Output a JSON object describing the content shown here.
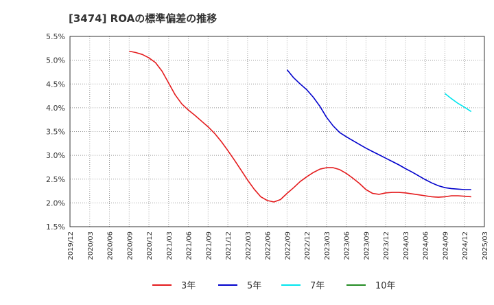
{
  "chart_data": {
    "type": "line",
    "title": "[3474]  ROAの標準偏差の推移",
    "xlabel": "",
    "ylabel": "",
    "ylim": [
      1.5,
      5.5
    ],
    "y_ticks": [
      1.5,
      2.0,
      2.5,
      3.0,
      3.5,
      4.0,
      4.5,
      5.0,
      5.5
    ],
    "y_tick_labels": [
      "1.5%",
      "2.0%",
      "2.5%",
      "3.0%",
      "3.5%",
      "4.0%",
      "4.5%",
      "5.0%",
      "5.5%"
    ],
    "x_tick_labels": [
      "2019/12",
      "2020/03",
      "2020/06",
      "2020/09",
      "2020/12",
      "2021/03",
      "2021/06",
      "2021/09",
      "2021/12",
      "2022/03",
      "2022/06",
      "2022/09",
      "2022/12",
      "2023/03",
      "2023/06",
      "2023/09",
      "2023/12",
      "2024/03",
      "2024/06",
      "2024/09",
      "2024/12",
      "2025/03"
    ],
    "grid": true,
    "legend_position": "bottom",
    "series": [
      {
        "name": "3年",
        "color": "#e41a1c",
        "points": [
          [
            "2020/09",
            5.19
          ],
          [
            "2020/10",
            5.16
          ],
          [
            "2020/11",
            5.12
          ],
          [
            "2020/12",
            5.05
          ],
          [
            "2021/01",
            4.95
          ],
          [
            "2021/02",
            4.77
          ],
          [
            "2021/03",
            4.52
          ],
          [
            "2021/04",
            4.27
          ],
          [
            "2021/05",
            4.08
          ],
          [
            "2021/06",
            3.95
          ],
          [
            "2021/07",
            3.84
          ],
          [
            "2021/08",
            3.72
          ],
          [
            "2021/09",
            3.6
          ],
          [
            "2021/10",
            3.46
          ],
          [
            "2021/11",
            3.29
          ],
          [
            "2021/12",
            3.1
          ],
          [
            "2022/01",
            2.9
          ],
          [
            "2022/02",
            2.69
          ],
          [
            "2022/03",
            2.48
          ],
          [
            "2022/04",
            2.29
          ],
          [
            "2022/05",
            2.13
          ],
          [
            "2022/06",
            2.05
          ],
          [
            "2022/07",
            2.02
          ],
          [
            "2022/08",
            2.07
          ],
          [
            "2022/09",
            2.2
          ],
          [
            "2022/10",
            2.32
          ],
          [
            "2022/11",
            2.45
          ],
          [
            "2022/12",
            2.55
          ],
          [
            "2023/01",
            2.64
          ],
          [
            "2023/02",
            2.71
          ],
          [
            "2023/03",
            2.74
          ],
          [
            "2023/04",
            2.74
          ],
          [
            "2023/05",
            2.7
          ],
          [
            "2023/06",
            2.62
          ],
          [
            "2023/07",
            2.52
          ],
          [
            "2023/08",
            2.41
          ],
          [
            "2023/09",
            2.28
          ],
          [
            "2023/10",
            2.2
          ],
          [
            "2023/11",
            2.18
          ],
          [
            "2023/12",
            2.21
          ],
          [
            "2024/01",
            2.22
          ],
          [
            "2024/02",
            2.22
          ],
          [
            "2024/03",
            2.21
          ],
          [
            "2024/04",
            2.19
          ],
          [
            "2024/05",
            2.17
          ],
          [
            "2024/06",
            2.15
          ],
          [
            "2024/07",
            2.13
          ],
          [
            "2024/08",
            2.12
          ],
          [
            "2024/09",
            2.13
          ],
          [
            "2024/10",
            2.15
          ],
          [
            "2024/11",
            2.15
          ],
          [
            "2024/12",
            2.14
          ],
          [
            "2025/01",
            2.13
          ]
        ]
      },
      {
        "name": "5年",
        "color": "#0000cc",
        "points": [
          [
            "2022/09",
            4.8
          ],
          [
            "2022/10",
            4.63
          ],
          [
            "2022/11",
            4.5
          ],
          [
            "2022/12",
            4.38
          ],
          [
            "2023/01",
            4.22
          ],
          [
            "2023/02",
            4.03
          ],
          [
            "2023/03",
            3.8
          ],
          [
            "2023/04",
            3.62
          ],
          [
            "2023/05",
            3.48
          ],
          [
            "2023/06",
            3.39
          ],
          [
            "2023/07",
            3.31
          ],
          [
            "2023/08",
            3.23
          ],
          [
            "2023/09",
            3.15
          ],
          [
            "2023/10",
            3.08
          ],
          [
            "2023/11",
            3.01
          ],
          [
            "2023/12",
            2.94
          ],
          [
            "2024/01",
            2.87
          ],
          [
            "2024/02",
            2.8
          ],
          [
            "2024/03",
            2.72
          ],
          [
            "2024/04",
            2.65
          ],
          [
            "2024/05",
            2.57
          ],
          [
            "2024/06",
            2.49
          ],
          [
            "2024/07",
            2.42
          ],
          [
            "2024/08",
            2.36
          ],
          [
            "2024/09",
            2.32
          ],
          [
            "2024/10",
            2.3
          ],
          [
            "2024/11",
            2.29
          ],
          [
            "2024/12",
            2.28
          ],
          [
            "2025/01",
            2.28
          ]
        ]
      },
      {
        "name": "7年",
        "color": "#00e5ee",
        "points": [
          [
            "2024/09",
            4.3
          ],
          [
            "2024/10",
            4.19
          ],
          [
            "2024/11",
            4.09
          ],
          [
            "2024/12",
            4.01
          ],
          [
            "2025/01",
            3.92
          ]
        ]
      },
      {
        "name": "10年",
        "color": "#228b22",
        "points": []
      }
    ]
  }
}
